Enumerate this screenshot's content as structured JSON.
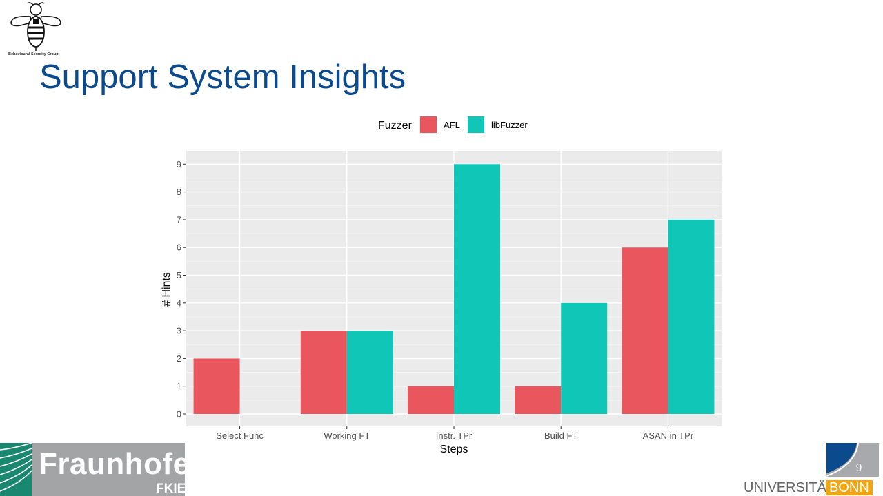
{
  "header": {
    "logo_caption": "Behavioural Security Group",
    "title": "Support System Insights"
  },
  "chart_data": {
    "type": "bar",
    "title": "",
    "xlabel": "Steps",
    "ylabel": "# Hints",
    "legend_title": "Fuzzer",
    "legend_position": "top",
    "categories": [
      "Select Func",
      "Working FT",
      "Instr. TPr",
      "Build FT",
      "ASAN in TPr"
    ],
    "series": [
      {
        "name": "AFL",
        "color": "#e9565d",
        "values": [
          2,
          3,
          1,
          1,
          6
        ]
      },
      {
        "name": "libFuzzer",
        "color": "#10c6b6",
        "values": [
          0,
          3,
          9,
          4,
          7
        ]
      }
    ],
    "ylim": [
      0,
      9
    ],
    "yticks": [
      0,
      1,
      2,
      3,
      4,
      5,
      6,
      7,
      8,
      9
    ],
    "grid": true
  },
  "footer": {
    "fraunhofer_name": "Fraunhofer",
    "fraunhofer_institute": "FKIE",
    "page_number": "9",
    "university_text": "UNIVERSITÄT",
    "university_city": "BONN"
  }
}
